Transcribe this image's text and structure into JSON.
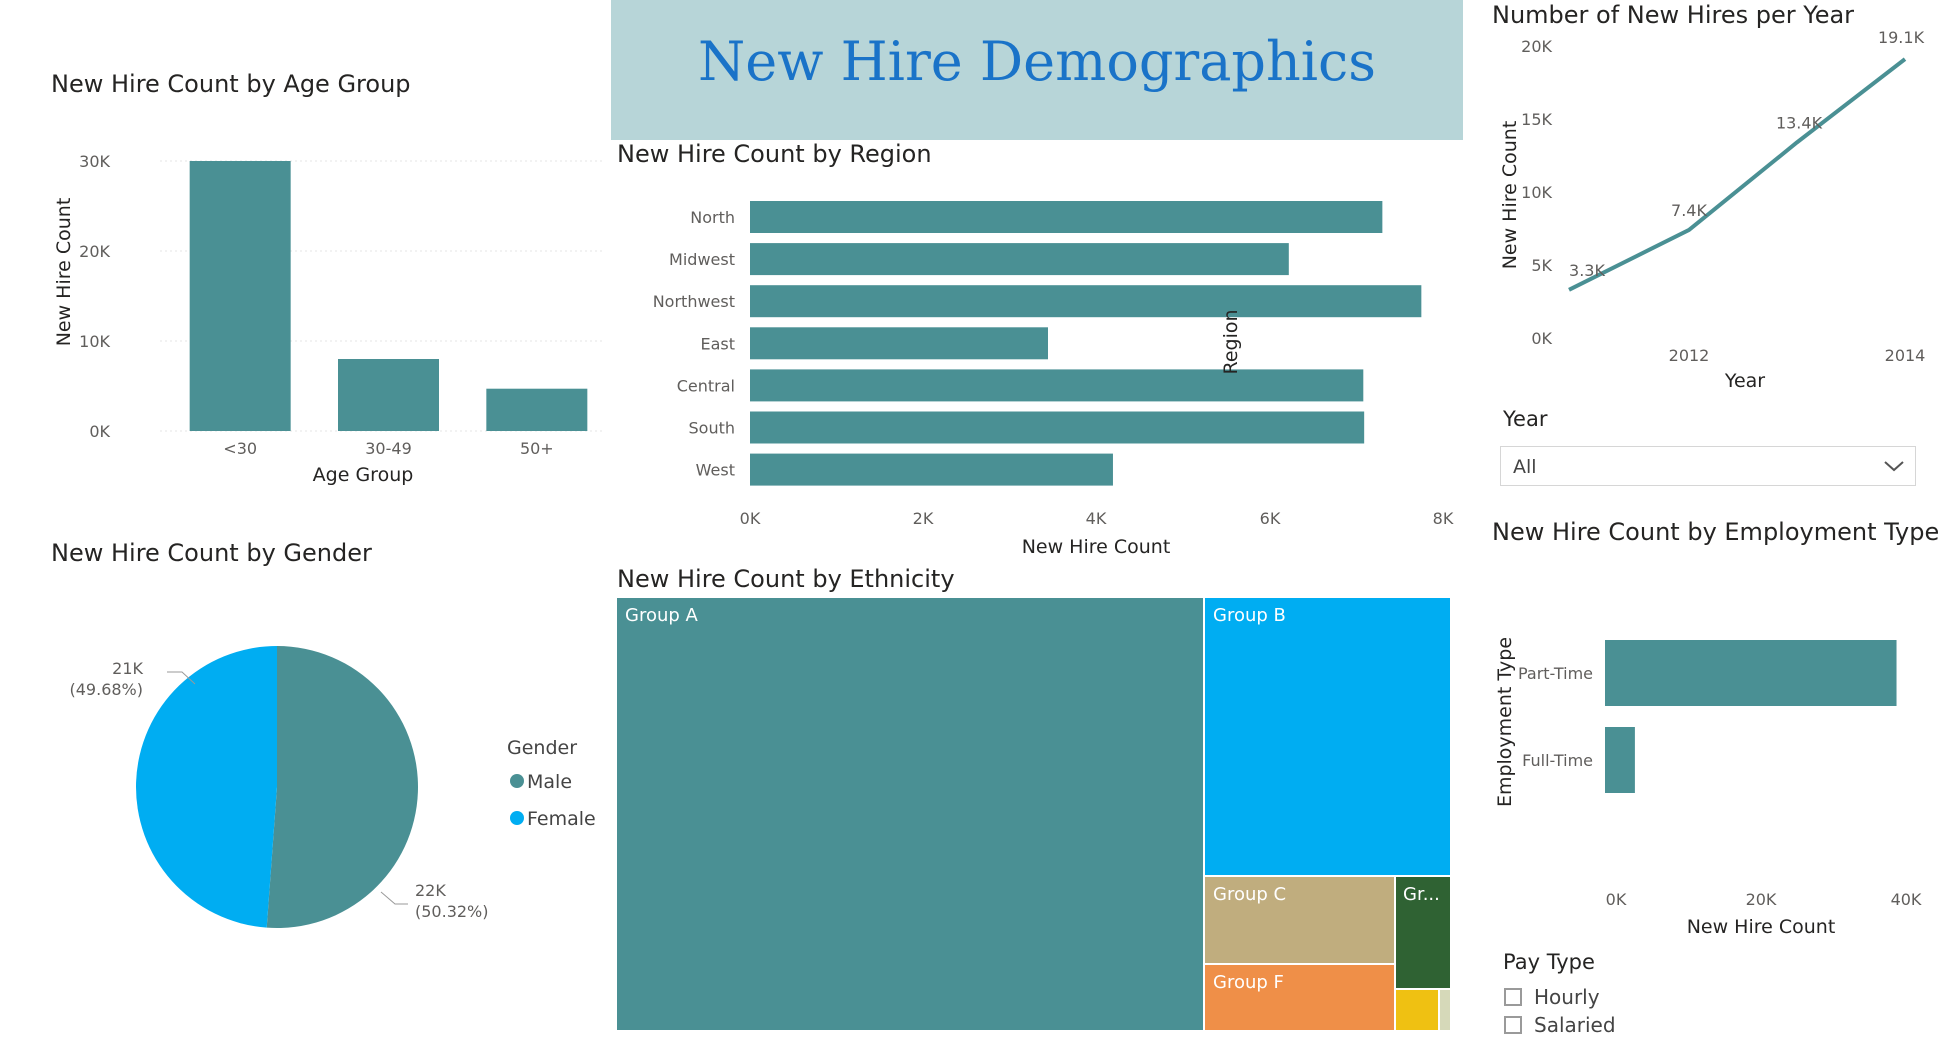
{
  "dashboard": {
    "title": "New Hire Demographics",
    "colors": {
      "teal": "#4a9094",
      "blue": "#00adf2",
      "banner": "#b7d5d8",
      "banner_text": "#1a73c8"
    }
  },
  "age_chart": {
    "title": "New Hire Count by Age Group",
    "xlabel": "Age Group",
    "ylabel": "New Hire Count",
    "ticks": [
      "0K",
      "10K",
      "20K",
      "30K"
    ]
  },
  "region_chart": {
    "title": "New Hire Count by Region",
    "xlabel": "New Hire Count",
    "ylabel": "Region",
    "ticks": [
      "0K",
      "2K",
      "4K",
      "6K",
      "8K"
    ]
  },
  "year_chart": {
    "title": "Number of New Hires per Year",
    "xlabel": "Year",
    "ylabel": "New Hire Count",
    "yticks": [
      "0K",
      "5K",
      "10K",
      "15K",
      "20K"
    ],
    "xticks": [
      "2012",
      "2014"
    ]
  },
  "gender_chart": {
    "title": "New Hire Count by Gender",
    "legend_title": "Gender"
  },
  "ethnicity_chart": {
    "title": "New Hire Count by Ethnicity"
  },
  "employment_chart": {
    "title": "New Hire Count by Employment Type",
    "xlabel": "New Hire Count",
    "ylabel": "Employment Type",
    "ticks": [
      "0K",
      "20K",
      "40K"
    ]
  },
  "year_slicer": {
    "label": "Year",
    "value": "All"
  },
  "pay_slicer": {
    "label": "Pay Type",
    "options": [
      "Hourly",
      "Salaried"
    ]
  },
  "chart_data": [
    {
      "id": "age",
      "type": "bar",
      "title": "New Hire Count by Age Group",
      "xlabel": "Age Group",
      "ylabel": "New Hire Count",
      "categories": [
        "<30",
        "30-49",
        "50+"
      ],
      "values": [
        30000,
        8000,
        4700
      ],
      "ylim": [
        0,
        30000
      ],
      "grid": true
    },
    {
      "id": "region",
      "type": "bar",
      "orientation": "horizontal",
      "title": "New Hire Count by Region",
      "xlabel": "New Hire Count",
      "ylabel": "Region",
      "categories": [
        "North",
        "Midwest",
        "Northwest",
        "East",
        "Central",
        "South",
        "West"
      ],
      "values": [
        7300,
        6220,
        7750,
        3440,
        7080,
        7090,
        4190
      ],
      "xlim": [
        0,
        8000
      ]
    },
    {
      "id": "year",
      "type": "line",
      "title": "Number of New Hires per Year",
      "xlabel": "Year",
      "ylabel": "New Hire Count",
      "x": [
        2011,
        2012,
        2013,
        2014
      ],
      "values": [
        3300,
        7400,
        13400,
        19100
      ],
      "labels": [
        "3.3K",
        "7.4K",
        "13.4K",
        "19.1K"
      ],
      "ylim": [
        0,
        20000
      ]
    },
    {
      "id": "gender",
      "type": "pie",
      "title": "New Hire Count by Gender",
      "legend_title": "Gender",
      "series": [
        {
          "name": "Male",
          "value": 22000,
          "label": "22K",
          "percent": "(50.32%)",
          "color": "#4a9094"
        },
        {
          "name": "Female",
          "value": 21000,
          "label": "21K",
          "percent": "(49.68%)",
          "color": "#00adf2"
        }
      ]
    },
    {
      "id": "ethnicity",
      "type": "treemap",
      "title": "New Hire Count by Ethnicity",
      "items": [
        {
          "name": "Group A",
          "label": "Group A",
          "color": "#4a9094"
        },
        {
          "name": "Group B",
          "label": "Group B",
          "color": "#00adf2"
        },
        {
          "name": "Group C",
          "label": "Group C",
          "color": "#c0ad7e"
        },
        {
          "name": "Group D",
          "label": "Gr...",
          "color": "#2f6233"
        },
        {
          "name": "Group F",
          "label": "Group F",
          "color": "#ef8f48"
        },
        {
          "name": "",
          "label": "",
          "color": "#efc112"
        },
        {
          "name": "",
          "label": "",
          "color": "#d6d9b9"
        }
      ]
    },
    {
      "id": "employment",
      "type": "bar",
      "orientation": "horizontal",
      "title": "New Hire Count by Employment Type",
      "xlabel": "New Hire Count",
      "ylabel": "Employment Type",
      "categories": [
        "Part-Time",
        "Full-Time"
      ],
      "values": [
        39000,
        4000
      ],
      "xlim": [
        0,
        40000
      ]
    }
  ]
}
